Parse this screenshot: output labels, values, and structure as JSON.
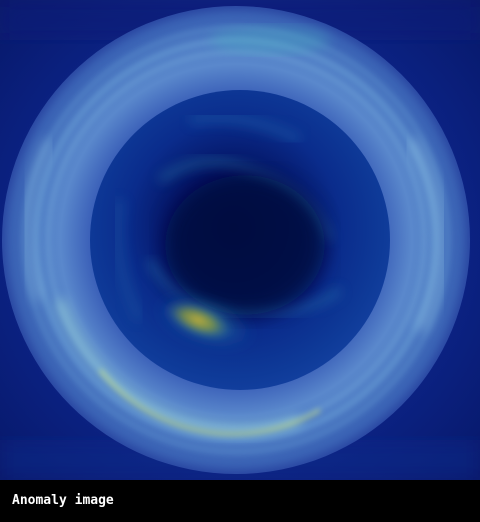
{
  "caption": {
    "label": "Anomaly image"
  },
  "heatmap": {
    "colormap": "viridis-like",
    "colors": {
      "background": "#0a1f7a",
      "ring_base": "#4a6fc0",
      "ring_highlight": "#8fd6e8",
      "inner_disc": "#0a2a8a",
      "center_dark": "#020a4a",
      "anomaly_hot": "#b8a830",
      "anomaly_warm": "#3fa9a0"
    }
  }
}
